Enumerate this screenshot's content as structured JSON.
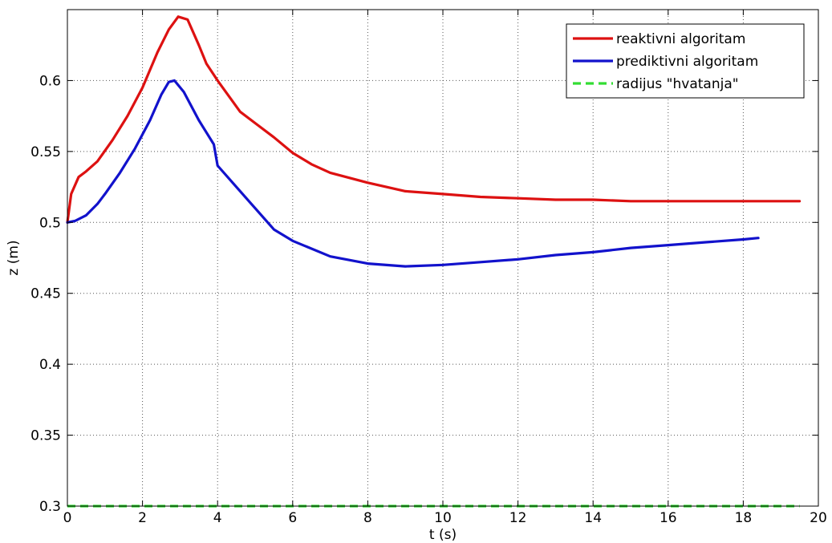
{
  "chart_data": {
    "type": "line",
    "title": "",
    "xlabel": "t (s)",
    "ylabel": "z (m)",
    "xlim": [
      0,
      20
    ],
    "ylim": [
      0.3,
      0.65
    ],
    "xticks": [
      0,
      2,
      4,
      6,
      8,
      10,
      12,
      14,
      16,
      18,
      20
    ],
    "yticks": [
      0.3,
      0.35,
      0.4,
      0.45,
      0.5,
      0.55,
      0.6
    ],
    "grid": true,
    "legend_position": "top-right",
    "series": [
      {
        "name": "reaktivni algoritam",
        "color": "#dd1111",
        "style": "solid",
        "x": [
          0,
          0.1,
          0.3,
          0.5,
          0.8,
          1.2,
          1.6,
          2.0,
          2.4,
          2.7,
          2.95,
          3.2,
          3.5,
          3.7,
          4.0,
          4.6,
          5.0,
          5.5,
          6.0,
          6.5,
          7.0,
          8.0,
          9.0,
          10.0,
          11.0,
          12.0,
          13.0,
          14.0,
          15.0,
          16.0,
          17.0,
          18.0,
          19.5
        ],
        "y": [
          0.5,
          0.52,
          0.532,
          0.536,
          0.543,
          0.558,
          0.575,
          0.595,
          0.62,
          0.636,
          0.645,
          0.643,
          0.625,
          0.612,
          0.6,
          0.578,
          0.57,
          0.56,
          0.549,
          0.541,
          0.535,
          0.528,
          0.522,
          0.52,
          0.518,
          0.517,
          0.516,
          0.516,
          0.515,
          0.515,
          0.515,
          0.515,
          0.515
        ]
      },
      {
        "name": "prediktivni algoritam",
        "color": "#1212cc",
        "style": "solid",
        "x": [
          0,
          0.2,
          0.5,
          0.8,
          1.0,
          1.4,
          1.8,
          2.2,
          2.5,
          2.7,
          2.85,
          3.1,
          3.5,
          3.9,
          4.0,
          4.5,
          5.0,
          5.5,
          6.0,
          7.0,
          8.0,
          9.0,
          10.0,
          11.0,
          12.0,
          13.0,
          14.0,
          15.0,
          16.0,
          17.0,
          18.0,
          18.4
        ],
        "y": [
          0.5,
          0.501,
          0.505,
          0.513,
          0.52,
          0.535,
          0.552,
          0.572,
          0.59,
          0.599,
          0.6,
          0.592,
          0.572,
          0.555,
          0.54,
          0.525,
          0.51,
          0.495,
          0.487,
          0.476,
          0.471,
          0.469,
          0.47,
          0.472,
          0.474,
          0.477,
          0.479,
          0.482,
          0.484,
          0.486,
          0.488,
          0.489
        ]
      },
      {
        "name": "radijus \"hvatanja\"",
        "color": "#33dd33",
        "style": "dashed",
        "x": [
          0,
          19.5
        ],
        "y": [
          0.3,
          0.3
        ]
      }
    ]
  }
}
